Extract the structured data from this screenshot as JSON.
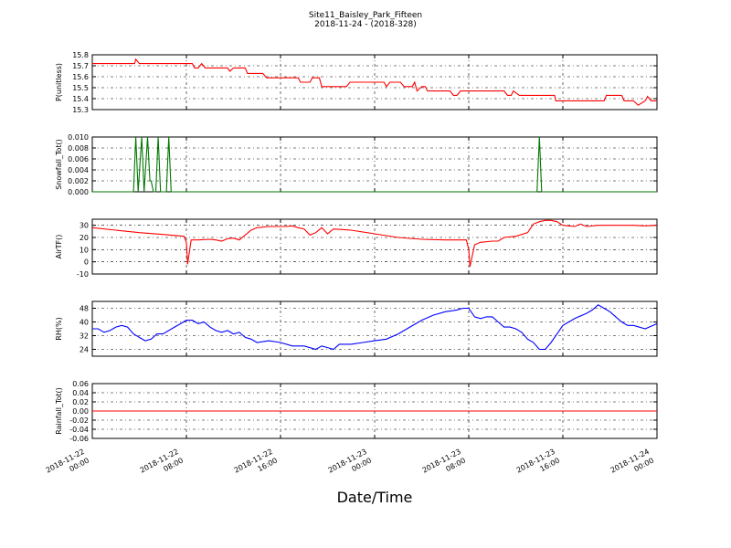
{
  "chart_data": {
    "title": "Site11_Baisley_Park_Fifteen",
    "subtitle": "2018-11-24 - (2018-328)",
    "xlabel": "Date/Time",
    "x_ticks": [
      {
        "l1": "2018-11-22",
        "l2": "00:00",
        "h": 0
      },
      {
        "l1": "2018-11-22",
        "l2": "08:00",
        "h": 8
      },
      {
        "l1": "2018-11-22",
        "l2": "16:00",
        "h": 16
      },
      {
        "l1": "2018-11-23",
        "l2": "00:00",
        "h": 24
      },
      {
        "l1": "2018-11-23",
        "l2": "08:00",
        "h": 32
      },
      {
        "l1": "2018-11-23",
        "l2": "16:00",
        "h": 40
      },
      {
        "l1": "2018-11-24",
        "l2": "00:00",
        "h": 48
      }
    ],
    "x_range_hours": [
      0,
      48
    ],
    "grid": true,
    "panels": [
      {
        "type": "line",
        "ylabel": "P(unitless)",
        "color": "#ff0000",
        "ylim": [
          15.3,
          15.8
        ],
        "yticks": [
          "15.3",
          "15.4",
          "15.5",
          "15.6",
          "15.7",
          "15.8"
        ],
        "points": [
          [
            0,
            15.72
          ],
          [
            3,
            15.72
          ],
          [
            3.6,
            15.72
          ],
          [
            3.7,
            15.76
          ],
          [
            4,
            15.72
          ],
          [
            6,
            15.72
          ],
          [
            8.5,
            15.72
          ],
          [
            8.7,
            15.68
          ],
          [
            9,
            15.68
          ],
          [
            9.3,
            15.72
          ],
          [
            9.6,
            15.68
          ],
          [
            11.5,
            15.68
          ],
          [
            11.7,
            15.65
          ],
          [
            12,
            15.68
          ],
          [
            13,
            15.68
          ],
          [
            13.2,
            15.63
          ],
          [
            14.5,
            15.63
          ],
          [
            14.8,
            15.59
          ],
          [
            16,
            15.59
          ],
          [
            17.5,
            15.59
          ],
          [
            17.7,
            15.55
          ],
          [
            18.5,
            15.55
          ],
          [
            18.7,
            15.59
          ],
          [
            19.3,
            15.59
          ],
          [
            19.5,
            15.51
          ],
          [
            20.5,
            15.51
          ],
          [
            21.6,
            15.51
          ],
          [
            21.9,
            15.55
          ],
          [
            24,
            15.55
          ],
          [
            24.8,
            15.55
          ],
          [
            25,
            15.51
          ],
          [
            25.3,
            15.55
          ],
          [
            26.2,
            15.55
          ],
          [
            26.5,
            15.51
          ],
          [
            27.2,
            15.51
          ],
          [
            27.4,
            15.55
          ],
          [
            27.6,
            15.47
          ],
          [
            28,
            15.51
          ],
          [
            28.3,
            15.51
          ],
          [
            28.5,
            15.47
          ],
          [
            30.4,
            15.47
          ],
          [
            30.7,
            15.43
          ],
          [
            31,
            15.43
          ],
          [
            31.3,
            15.47
          ],
          [
            35,
            15.47
          ],
          [
            35.3,
            15.43
          ],
          [
            35.6,
            15.43
          ],
          [
            35.8,
            15.47
          ],
          [
            36.3,
            15.43
          ],
          [
            39,
            15.43
          ],
          [
            39.3,
            15.43
          ],
          [
            39.4,
            15.38
          ],
          [
            42,
            15.38
          ],
          [
            43.5,
            15.38
          ],
          [
            43.7,
            15.43
          ],
          [
            45,
            15.43
          ],
          [
            45.2,
            15.38
          ],
          [
            46,
            15.38
          ],
          [
            46.4,
            15.34
          ],
          [
            47,
            15.38
          ],
          [
            47.2,
            15.42
          ],
          [
            47.5,
            15.38
          ],
          [
            48,
            15.38
          ]
        ]
      },
      {
        "type": "line",
        "ylabel": "Snowfall_Tot()",
        "color": "#007700",
        "ylim": [
          0,
          0.01
        ],
        "yticks": [
          "0.000",
          "0.002",
          "0.004",
          "0.006",
          "0.008",
          "0.010"
        ],
        "points": [
          [
            0,
            0
          ],
          [
            3.5,
            0
          ],
          [
            3.7,
            0.01
          ],
          [
            3.9,
            0
          ],
          [
            4.2,
            0.01
          ],
          [
            4.4,
            0
          ],
          [
            4.7,
            0.01
          ],
          [
            4.9,
            0.002
          ],
          [
            5,
            0.002
          ],
          [
            5.2,
            0
          ],
          [
            5.4,
            0
          ],
          [
            5.6,
            0.01
          ],
          [
            5.8,
            0
          ],
          [
            6.3,
            0
          ],
          [
            6.5,
            0.01
          ],
          [
            6.7,
            0
          ],
          [
            37.8,
            0
          ],
          [
            38,
            0.01
          ],
          [
            38.2,
            0
          ],
          [
            48,
            0
          ]
        ]
      },
      {
        "type": "line",
        "ylabel": "AirTF()",
        "color": "#ff0000",
        "ylim": [
          -10,
          35
        ],
        "yticks": [
          "-10",
          "0",
          "10",
          "20",
          "30"
        ],
        "points": [
          [
            0,
            28
          ],
          [
            2,
            26
          ],
          [
            4,
            24
          ],
          [
            6,
            22.5
          ],
          [
            7.8,
            21
          ],
          [
            8,
            16
          ],
          [
            8.1,
            -2
          ],
          [
            8.4,
            18
          ],
          [
            9,
            18
          ],
          [
            10,
            18.5
          ],
          [
            10.5,
            18
          ],
          [
            11,
            17
          ],
          [
            11.5,
            19
          ],
          [
            12,
            19.5
          ],
          [
            12.5,
            18
          ],
          [
            13,
            22
          ],
          [
            13.5,
            26
          ],
          [
            14,
            28
          ],
          [
            15,
            29
          ],
          [
            16,
            29
          ],
          [
            16.5,
            29
          ],
          [
            17,
            29.5
          ],
          [
            17.5,
            28
          ],
          [
            18,
            27
          ],
          [
            18.5,
            22
          ],
          [
            19,
            24
          ],
          [
            19.5,
            28
          ],
          [
            20,
            23
          ],
          [
            20.5,
            27
          ],
          [
            22,
            26
          ],
          [
            24,
            23
          ],
          [
            26,
            20
          ],
          [
            28,
            18.5
          ],
          [
            30,
            18
          ],
          [
            31,
            18
          ],
          [
            31.8,
            18
          ],
          [
            32,
            10
          ],
          [
            32.1,
            -4
          ],
          [
            32.5,
            14
          ],
          [
            33,
            16
          ],
          [
            34,
            17
          ],
          [
            34.5,
            17
          ],
          [
            35,
            20
          ],
          [
            36,
            21
          ],
          [
            37,
            24
          ],
          [
            37.5,
            31
          ],
          [
            38,
            33
          ],
          [
            38.5,
            34
          ],
          [
            39,
            34
          ],
          [
            39.5,
            33
          ],
          [
            40,
            30
          ],
          [
            41,
            29
          ],
          [
            41.5,
            31
          ],
          [
            42,
            29
          ],
          [
            43,
            30
          ],
          [
            44,
            30
          ],
          [
            46,
            30
          ],
          [
            47,
            29.5
          ],
          [
            48,
            30
          ]
        ]
      },
      {
        "type": "line",
        "ylabel": "RH(%)",
        "color": "#0000ff",
        "ylim": [
          20,
          52
        ],
        "yticks": [
          "24",
          "32",
          "40",
          "48"
        ],
        "points": [
          [
            0,
            36
          ],
          [
            0.5,
            36
          ],
          [
            1,
            34
          ],
          [
            1.5,
            35
          ],
          [
            2,
            37
          ],
          [
            2.5,
            38
          ],
          [
            3,
            37
          ],
          [
            3.5,
            33
          ],
          [
            4,
            31
          ],
          [
            4.5,
            29
          ],
          [
            5,
            30
          ],
          [
            5.5,
            33
          ],
          [
            6,
            33
          ],
          [
            7,
            37
          ],
          [
            7.5,
            39
          ],
          [
            8,
            41
          ],
          [
            8.5,
            41
          ],
          [
            9,
            39
          ],
          [
            9.5,
            40
          ],
          [
            10,
            37
          ],
          [
            10.5,
            35
          ],
          [
            11,
            34
          ],
          [
            11.5,
            35
          ],
          [
            12,
            33
          ],
          [
            12.5,
            34
          ],
          [
            13,
            31
          ],
          [
            13.5,
            30
          ],
          [
            14,
            28
          ],
          [
            15,
            29
          ],
          [
            16,
            28
          ],
          [
            17,
            26
          ],
          [
            18,
            26
          ],
          [
            19,
            24
          ],
          [
            19.5,
            26
          ],
          [
            20,
            25
          ],
          [
            20.5,
            24
          ],
          [
            21,
            27
          ],
          [
            22,
            27
          ],
          [
            23,
            28
          ],
          [
            24,
            29
          ],
          [
            25,
            30
          ],
          [
            26,
            33
          ],
          [
            27,
            37
          ],
          [
            28,
            41
          ],
          [
            29,
            44
          ],
          [
            30,
            46
          ],
          [
            31,
            47
          ],
          [
            31.5,
            48
          ],
          [
            32,
            48
          ],
          [
            32.5,
            43
          ],
          [
            33,
            42
          ],
          [
            33.5,
            43
          ],
          [
            34,
            43
          ],
          [
            34.5,
            40
          ],
          [
            35,
            37
          ],
          [
            35.5,
            37
          ],
          [
            36,
            36
          ],
          [
            36.5,
            34
          ],
          [
            37,
            30
          ],
          [
            37.5,
            28
          ],
          [
            38,
            24
          ],
          [
            38.5,
            24
          ],
          [
            39,
            28
          ],
          [
            39.5,
            33
          ],
          [
            40,
            38
          ],
          [
            41,
            42
          ],
          [
            42,
            45
          ],
          [
            42.5,
            47
          ],
          [
            43,
            50
          ],
          [
            43.5,
            48
          ],
          [
            44,
            46
          ],
          [
            44.5,
            43
          ],
          [
            45,
            40
          ],
          [
            45.5,
            38
          ],
          [
            46,
            38
          ],
          [
            47,
            36
          ],
          [
            48,
            39
          ]
        ]
      },
      {
        "type": "line",
        "ylabel": "Rainfall_Tot()",
        "color": "#ff0000",
        "ylim": [
          -0.06,
          0.06
        ],
        "yticks": [
          "-0.06",
          "-0.04",
          "-0.02",
          "0.00",
          "0.02",
          "0.04",
          "0.06"
        ],
        "points": [
          [
            0,
            0
          ],
          [
            48,
            0
          ]
        ]
      }
    ]
  }
}
